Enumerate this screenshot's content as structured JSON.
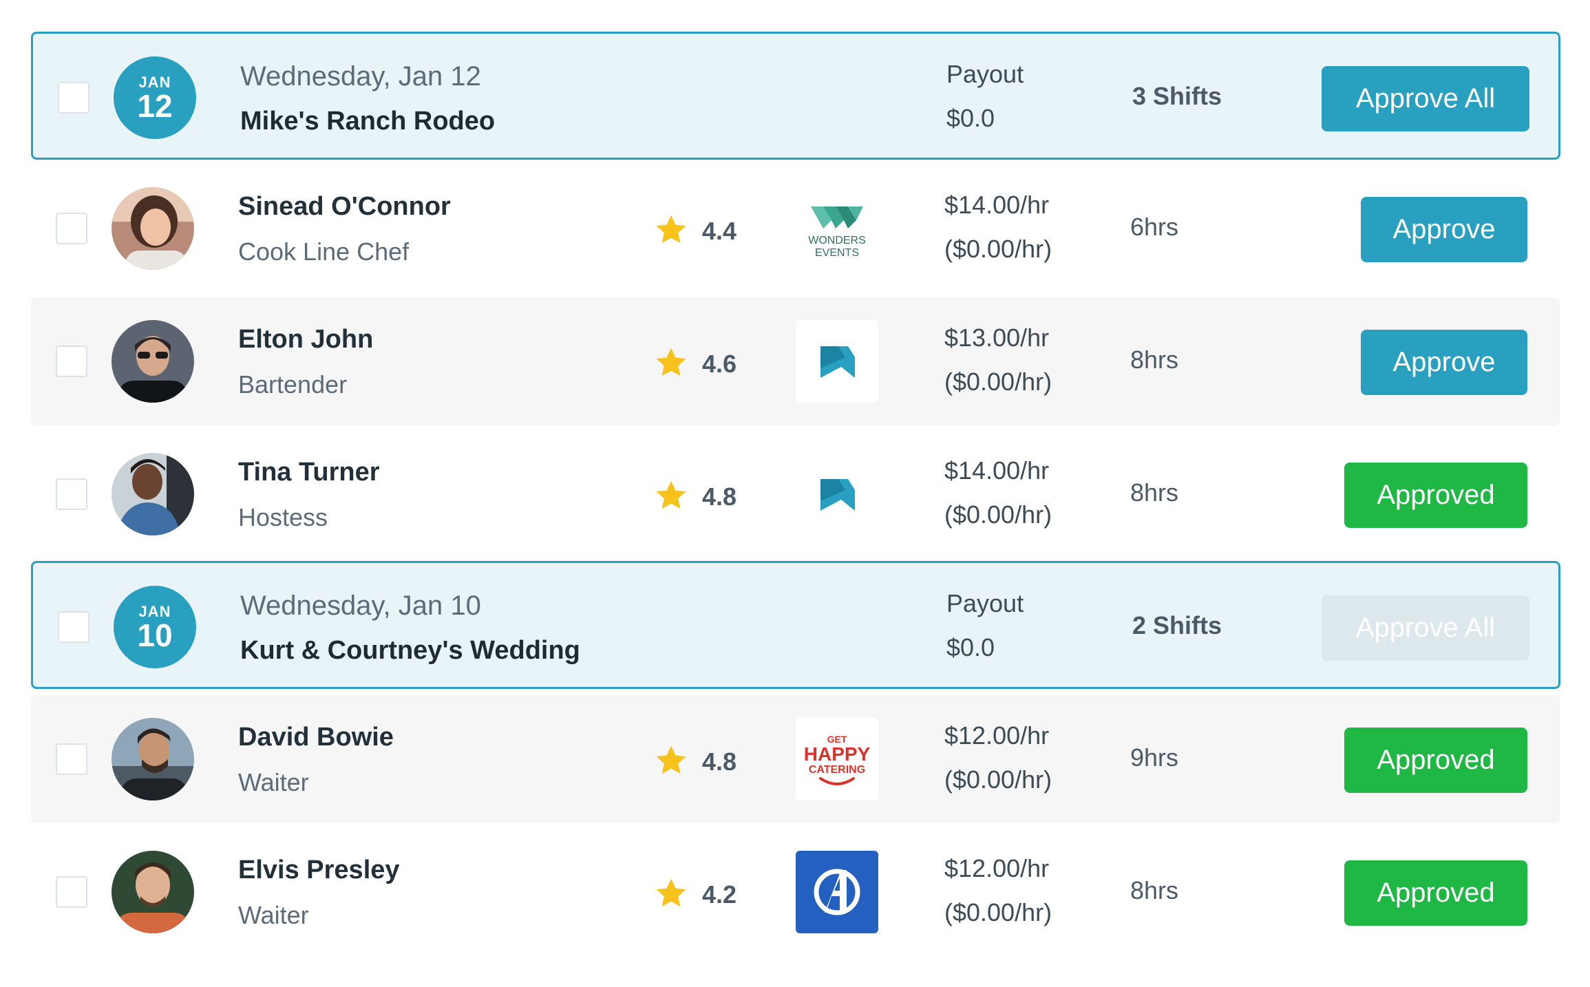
{
  "groups": [
    {
      "month": "JAN",
      "day": "12",
      "date_label": "Wednesday, Jan 12",
      "event_name": "Mike's Ranch Rodeo",
      "payout_label": "Payout",
      "payout_value": "$0.0",
      "shift_count": "3 Shifts",
      "approve_all_label": "Approve All",
      "approve_all_enabled": true,
      "workers": [
        {
          "name": "Sinead O'Connor",
          "role": "Cook Line Chef",
          "rating": "4.4",
          "client_logo": "wonders-events-logo",
          "logo_text": [
            "WONDERS",
            "EVENTS"
          ],
          "rate": "$14.00/hr",
          "rate_sub": "($0.00/hr)",
          "hours": "6hrs",
          "action": "Approve",
          "status": "pending"
        },
        {
          "name": "Elton John",
          "role": "Bartender",
          "rating": "4.6",
          "client_logo": "bookmark-logo",
          "rate": "$13.00/hr",
          "rate_sub": "($0.00/hr)",
          "hours": "8hrs",
          "action": "Approve",
          "status": "pending"
        },
        {
          "name": "Tina Turner",
          "role": "Hostess",
          "rating": "4.8",
          "client_logo": "bookmark-logo",
          "rate": "$14.00/hr",
          "rate_sub": "($0.00/hr)",
          "hours": "8hrs",
          "action": "Approved",
          "status": "approved"
        }
      ]
    },
    {
      "month": "JAN",
      "day": "10",
      "date_label": "Wednesday, Jan 10",
      "event_name": "Kurt & Courtney's Wedding",
      "payout_label": "Payout",
      "payout_value": "$0.0",
      "shift_count": "2 Shifts",
      "approve_all_label": "Approve All",
      "approve_all_enabled": false,
      "workers": [
        {
          "name": "David Bowie",
          "role": "Waiter",
          "rating": "4.8",
          "client_logo": "get-happy-catering-logo",
          "logo_text": [
            "GET",
            "HAPPY",
            "CATERING"
          ],
          "rate": "$12.00/hr",
          "rate_sub": "($0.00/hr)",
          "hours": "9hrs",
          "action": "Approved",
          "status": "approved"
        },
        {
          "name": "Elvis Presley",
          "role": "Waiter",
          "rating": "4.2",
          "client_logo": "avengers-logo",
          "rate": "$12.00/hr",
          "rate_sub": "($0.00/hr)",
          "hours": "8hrs",
          "action": "Approved",
          "status": "approved"
        }
      ]
    }
  ],
  "colors": {
    "accent": "#2aa0c0",
    "approved": "#1fb845",
    "group_background": "#e9f4f9",
    "star": "#f7c21b"
  }
}
